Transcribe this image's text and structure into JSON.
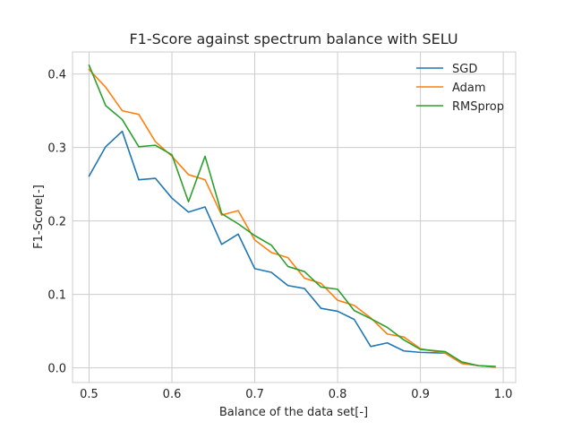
{
  "chart_data": {
    "type": "line",
    "title": "F1-Score against spectrum balance with SELU",
    "xlabel": "Balance of the data set[-]",
    "ylabel": "F1-Score[-]",
    "xlim": [
      0.48,
      1.015
    ],
    "ylim": [
      -0.02,
      0.43
    ],
    "xticks": [
      0.5,
      0.6,
      0.7,
      0.8,
      0.9,
      1.0
    ],
    "xtick_labels": [
      "0.5",
      "0.6",
      "0.7",
      "0.8",
      "0.9",
      "1.0"
    ],
    "yticks": [
      0.0,
      0.1,
      0.2,
      0.3,
      0.4
    ],
    "ytick_labels": [
      "0.0",
      "0.1",
      "0.2",
      "0.3",
      "0.4"
    ],
    "grid": true,
    "legend_position": "top-right",
    "x": [
      0.5,
      0.52,
      0.54,
      0.56,
      0.58,
      0.6,
      0.62,
      0.64,
      0.66,
      0.68,
      0.7,
      0.72,
      0.74,
      0.76,
      0.78,
      0.8,
      0.82,
      0.84,
      0.86,
      0.88,
      0.9,
      0.93,
      0.95,
      0.97,
      0.99
    ],
    "series": [
      {
        "name": "SGD",
        "color": "#1f77b4",
        "values": [
          0.261,
          0.301,
          0.322,
          0.256,
          0.258,
          0.231,
          0.212,
          0.219,
          0.168,
          0.182,
          0.135,
          0.13,
          0.112,
          0.108,
          0.081,
          0.077,
          0.066,
          0.029,
          0.034,
          0.023,
          0.021,
          0.02,
          0.006,
          0.003,
          0.001
        ]
      },
      {
        "name": "Adam",
        "color": "#ff7f0e",
        "values": [
          0.406,
          0.382,
          0.35,
          0.345,
          0.308,
          0.288,
          0.263,
          0.256,
          0.208,
          0.214,
          0.174,
          0.157,
          0.15,
          0.122,
          0.115,
          0.092,
          0.085,
          0.068,
          0.046,
          0.042,
          0.026,
          0.02,
          0.006,
          0.003,
          0.001
        ]
      },
      {
        "name": "RMSprop",
        "color": "#2ca02c",
        "values": [
          0.412,
          0.357,
          0.338,
          0.301,
          0.303,
          0.29,
          0.226,
          0.288,
          0.21,
          0.196,
          0.18,
          0.167,
          0.138,
          0.131,
          0.11,
          0.107,
          0.078,
          0.067,
          0.055,
          0.038,
          0.025,
          0.022,
          0.008,
          0.003,
          0.002
        ]
      }
    ]
  }
}
